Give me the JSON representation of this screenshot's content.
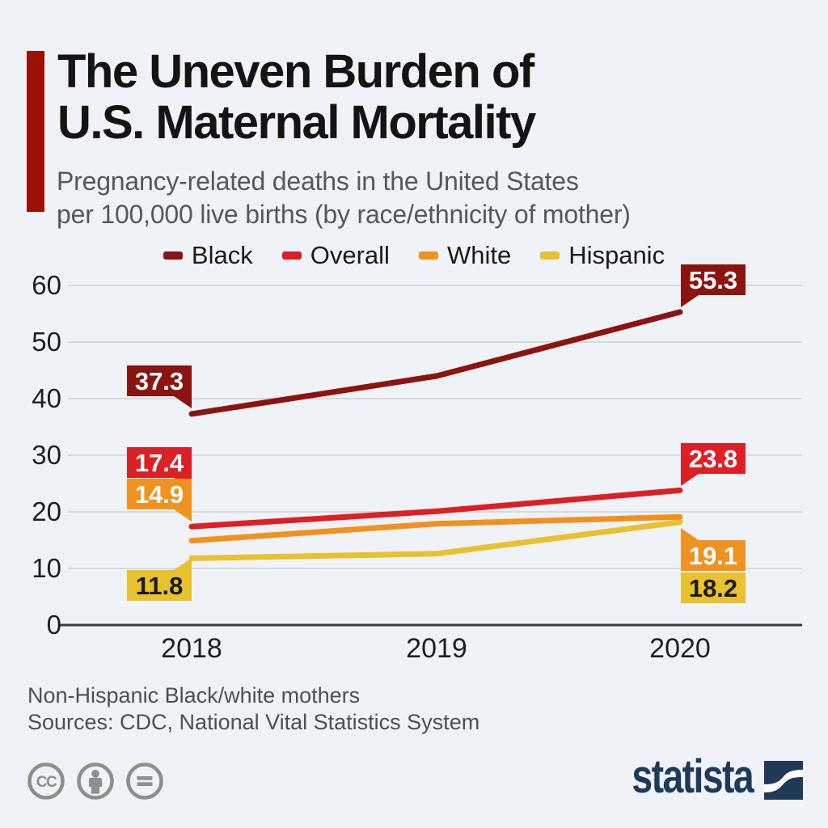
{
  "colors": {
    "background": "#eff3f7",
    "accent_bar": "#9c1006",
    "title_text": "#141414",
    "subtitle_text": "#54585b",
    "gridline": "#cdd1d4",
    "axis_line": "#3a3d40",
    "tick_text": "#1d2023",
    "footer_text": "#4b5054",
    "license_icon": "#8b908c",
    "brand_navy": "#1e3a58"
  },
  "header": {
    "title_lines": [
      "The Uneven Burden of",
      "U.S. Maternal Mortality"
    ],
    "subtitle_lines": [
      "Pregnancy-related deaths in the United States",
      "per 100,000 live births (by race/ethnicity of mother)"
    ]
  },
  "legend": {
    "items": [
      {
        "label": "Black",
        "color": "#8b1410"
      },
      {
        "label": "Overall",
        "color": "#dc2026"
      },
      {
        "label": "White",
        "color": "#f0921f"
      },
      {
        "label": "Hispanic",
        "color": "#e8c12f"
      }
    ]
  },
  "chart_data": {
    "type": "line",
    "title": "Pregnancy-related deaths in the United States per 100,000 live births (by race/ethnicity of mother)",
    "categories": [
      "2018",
      "2019",
      "2020"
    ],
    "series": [
      {
        "name": "Black",
        "color": "#8b1410",
        "label_text_color": "#ffffff",
        "values": [
          37.3,
          44.0,
          55.3
        ],
        "labeled_values": [
          "37.3",
          "55.3"
        ]
      },
      {
        "name": "Overall",
        "color": "#dc2026",
        "label_text_color": "#ffffff",
        "values": [
          17.4,
          20.1,
          23.8
        ],
        "labeled_values": [
          "17.4",
          "23.8"
        ]
      },
      {
        "name": "White",
        "color": "#f0921f",
        "label_text_color": "#ffffff",
        "values": [
          14.9,
          17.9,
          19.1
        ],
        "labeled_values": [
          "14.9",
          "19.1"
        ]
      },
      {
        "name": "Hispanic",
        "color": "#e8c12f",
        "label_text_color": "#1a1a1a",
        "values": [
          11.8,
          12.6,
          18.2
        ],
        "labeled_values": [
          "11.8",
          "18.2"
        ]
      }
    ],
    "ylim": [
      0,
      60
    ],
    "yticks": [
      0,
      10,
      20,
      30,
      40,
      50,
      60
    ],
    "grid": "horizontal",
    "legend_position": "top"
  },
  "footer": {
    "note": "Non-Hispanic Black/white mothers",
    "sources": "Sources: CDC, National Vital Statistics System"
  },
  "brand": {
    "wordmark": "statista"
  },
  "license_icons": [
    "creative-commons",
    "attribution",
    "no-derivatives"
  ]
}
